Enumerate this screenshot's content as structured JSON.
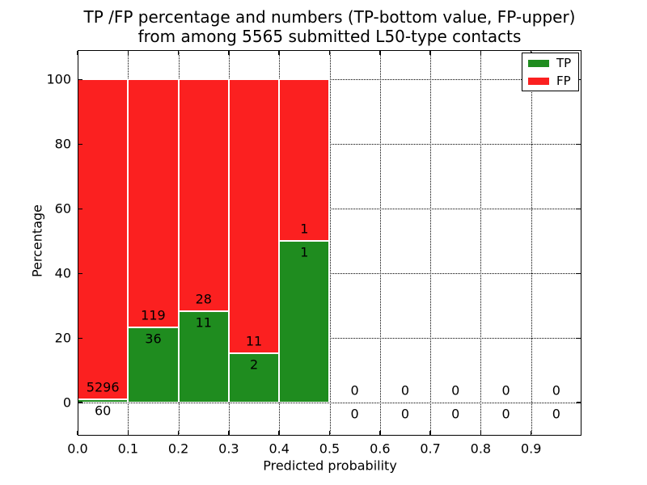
{
  "figure": {
    "title_line1": "TP /FP percentage and numbers (TP-bottom value, FP-upper)",
    "title_line2": "from among 5565 submitted L50-type contacts"
  },
  "chart_data": {
    "type": "bar",
    "stacked": true,
    "units": "percent_of_bin_total",
    "title": "TP /FP percentage and numbers (TP-bottom value, FP-upper) from among 5565 submitted L50-type contacts",
    "xlabel": "Predicted probability",
    "ylabel": "Percentage",
    "xlim": [
      0.0,
      1.0
    ],
    "ylim": [
      -10.2,
      109.1
    ],
    "grid": "dotted",
    "legend_position": "upper right",
    "legend": [
      {
        "label": "TP",
        "color": "#1f8c1f"
      },
      {
        "label": "FP",
        "color": "#fb2020"
      }
    ],
    "xticks": [
      {
        "value": 0.0,
        "label": "0.0"
      },
      {
        "value": 0.1,
        "label": "0.1"
      },
      {
        "value": 0.2,
        "label": "0.2"
      },
      {
        "value": 0.3,
        "label": "0.3"
      },
      {
        "value": 0.4,
        "label": "0.4"
      },
      {
        "value": 0.5,
        "label": "0.5"
      },
      {
        "value": 0.6,
        "label": "0.6"
      },
      {
        "value": 0.7,
        "label": "0.7"
      },
      {
        "value": 0.8,
        "label": "0.8"
      },
      {
        "value": 0.9,
        "label": "0.9"
      }
    ],
    "yticks": [
      {
        "value": 0,
        "label": "0"
      },
      {
        "value": 20,
        "label": "20"
      },
      {
        "value": 40,
        "label": "40"
      },
      {
        "value": 60,
        "label": "60"
      },
      {
        "value": 80,
        "label": "80"
      },
      {
        "value": 100,
        "label": "100"
      }
    ],
    "bins": [
      {
        "x_range": [
          0.0,
          0.1
        ],
        "tp": 60,
        "fp": 5296
      },
      {
        "x_range": [
          0.1,
          0.2
        ],
        "tp": 36,
        "fp": 119
      },
      {
        "x_range": [
          0.2,
          0.3
        ],
        "tp": 11,
        "fp": 28
      },
      {
        "x_range": [
          0.3,
          0.4
        ],
        "tp": 2,
        "fp": 11
      },
      {
        "x_range": [
          0.4,
          0.5
        ],
        "tp": 1,
        "fp": 1
      },
      {
        "x_range": [
          0.5,
          0.6
        ],
        "tp": 0,
        "fp": 0
      },
      {
        "x_range": [
          0.6,
          0.7
        ],
        "tp": 0,
        "fp": 0
      },
      {
        "x_range": [
          0.7,
          0.8
        ],
        "tp": 0,
        "fp": 0
      },
      {
        "x_range": [
          0.8,
          0.9
        ],
        "tp": 0,
        "fp": 0
      },
      {
        "x_range": [
          0.9,
          1.0
        ],
        "tp": 0,
        "fp": 0
      }
    ]
  }
}
